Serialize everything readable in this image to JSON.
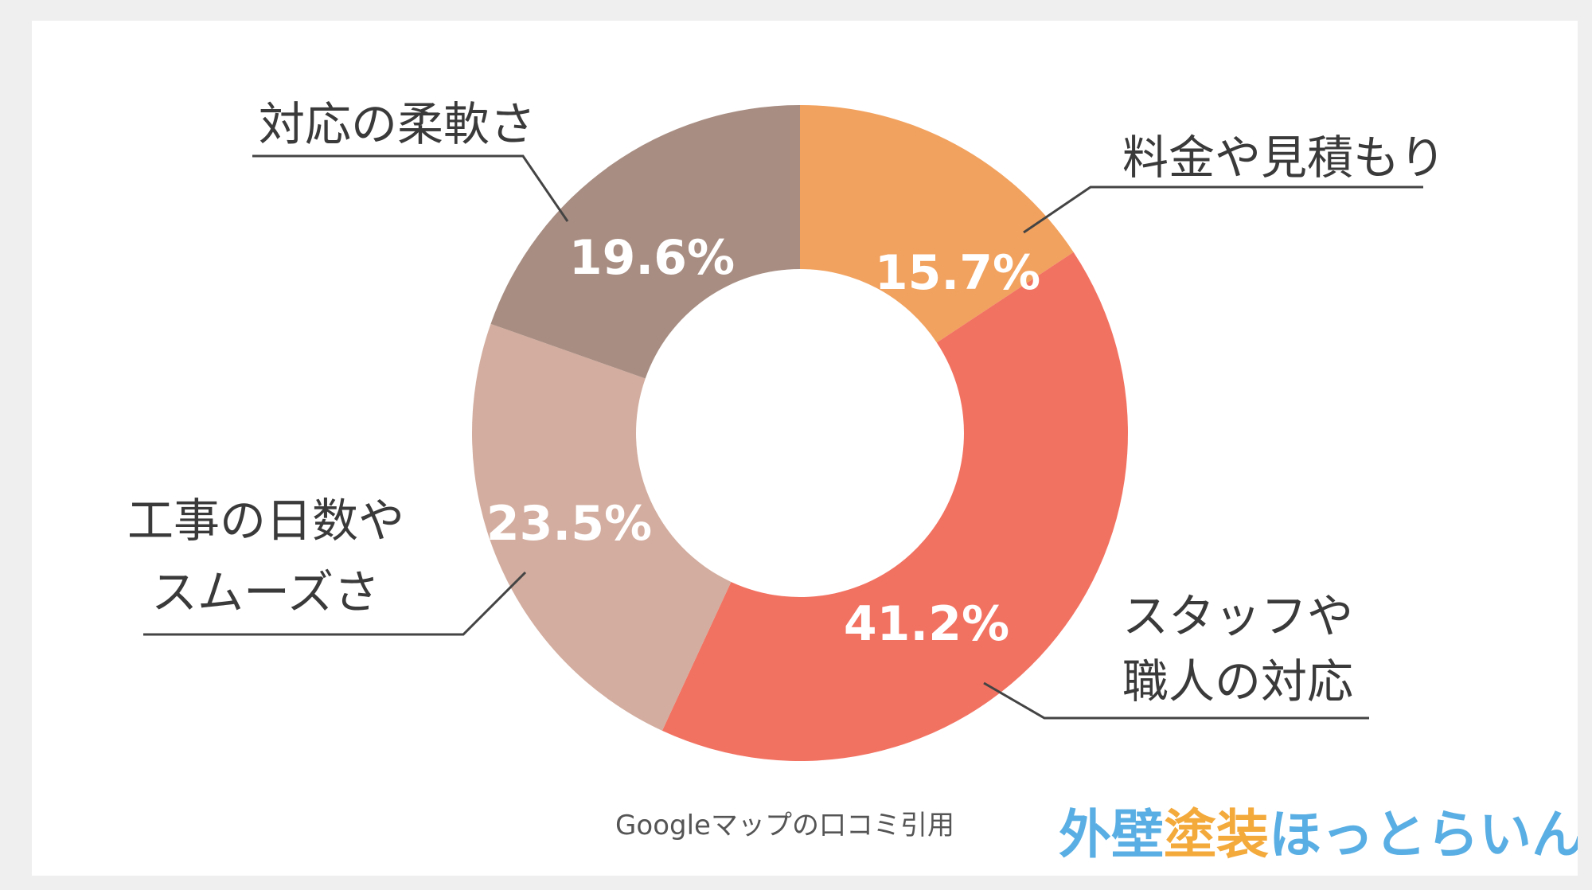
{
  "colors": {
    "background": "#efefef",
    "card": "#ffffff",
    "label_text": "#3a3a3a",
    "leader_line": "#444444",
    "logo_blue": "#59aee3",
    "logo_orange": "#f4a93b"
  },
  "chart_data": {
    "type": "pie",
    "variant": "donut",
    "start": "12 o'clock, clockwise",
    "slices": [
      {
        "label": "料金や見積もり",
        "label_lines": [
          "料金や見積もり"
        ],
        "value": 15.7,
        "value_label": "15.7%",
        "color": "#f2a25f"
      },
      {
        "label": "スタッフや職人の対応",
        "label_lines": [
          "スタッフや",
          "職人の対応"
        ],
        "value": 41.2,
        "value_label": "41.2%",
        "color": "#f27262"
      },
      {
        "label": "工事の日数やスムーズさ",
        "label_lines": [
          "工事の日数や",
          "スムーズさ"
        ],
        "value": 23.5,
        "value_label": "23.5%",
        "color": "#d3ad9f"
      },
      {
        "label": "対応の柔軟さ",
        "label_lines": [
          "対応の柔軟さ"
        ],
        "value": 19.6,
        "value_label": "19.6%",
        "color": "#a88d82"
      }
    ]
  },
  "source_note": "Googleマップの口コミ引用",
  "logo": {
    "part1": "外壁",
    "part2": "塗装",
    "part3": "ほっとらいん"
  }
}
